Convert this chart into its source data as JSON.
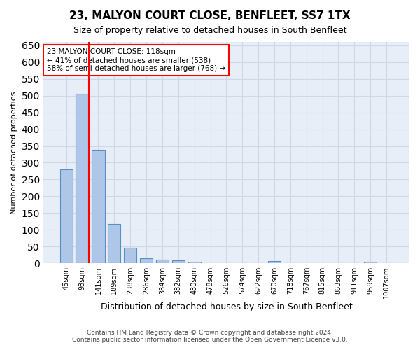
{
  "title1": "23, MALYON COURT CLOSE, BENFLEET, SS7 1TX",
  "title2": "Size of property relative to detached houses in South Benfleet",
  "xlabel": "Distribution of detached houses by size in South Benfleet",
  "ylabel": "Number of detached properties",
  "annotation_line1": "23 MALYON COURT CLOSE: 118sqm",
  "annotation_line2": "← 41% of detached houses are smaller (538)",
  "annotation_line3": "58% of semi-detached houses are larger (768) →",
  "footer1": "Contains HM Land Registry data © Crown copyright and database right 2024.",
  "footer2": "Contains public sector information licensed under the Open Government Licence v3.0.",
  "bin_labels": [
    "45sqm",
    "93sqm",
    "141sqm",
    "189sqm",
    "238sqm",
    "286sqm",
    "334sqm",
    "382sqm",
    "430sqm",
    "478sqm",
    "526sqm",
    "574sqm",
    "622sqm",
    "670sqm",
    "718sqm",
    "767sqm",
    "815sqm",
    "863sqm",
    "911sqm",
    "959sqm",
    "1007sqm"
  ],
  "bar_values": [
    280,
    505,
    338,
    118,
    47,
    16,
    10,
    8,
    5,
    0,
    0,
    0,
    0,
    7,
    0,
    0,
    0,
    0,
    0,
    5,
    0
  ],
  "bar_color": "#aec6e8",
  "bar_edge_color": "#5a8fc2",
  "grid_color": "#d0d8e8",
  "bg_color": "#e8eef8",
  "annotation_box_color": "white",
  "annotation_box_edge": "red",
  "redline_x": 1,
  "ylim": [
    0,
    660
  ],
  "yticks": [
    0,
    50,
    100,
    150,
    200,
    250,
    300,
    350,
    400,
    450,
    500,
    550,
    600,
    650
  ]
}
